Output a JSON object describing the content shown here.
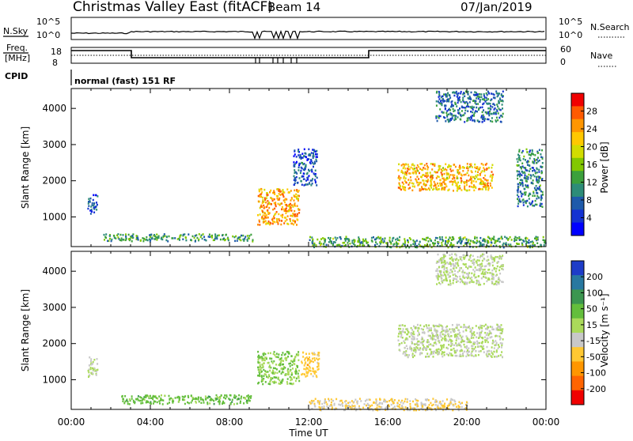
{
  "header": {
    "title": "Christmas Valley East (fitACF)",
    "beam": "Beam 14",
    "date": "07/Jan/2019"
  },
  "top_panels": {
    "nsky_label": "N.Sky",
    "nsearch_label": "N.Search",
    "noise_ticks_left": [
      "10^5",
      "10^0"
    ],
    "noise_ticks_right": [
      "10^5",
      "10^0"
    ],
    "freq_label_1": "Freq.",
    "freq_label_2": "[MHz]",
    "freq_ticks": [
      "18",
      "8"
    ],
    "nave_label": "Nave",
    "nave_ticks": [
      "60",
      "0"
    ],
    "cpid_label": "CPID",
    "cpid_text": "normal (fast) 151 RF"
  },
  "axes": {
    "ylabel": "Slant Range [km]",
    "yticks": [
      "4000",
      "3000",
      "2000",
      "1000"
    ],
    "xticks": [
      "00:00",
      "04:00",
      "08:00",
      "12:00",
      "16:00",
      "20:00",
      "00:00"
    ],
    "xlabel": "Time UT"
  },
  "power_bar": {
    "label": "Power [dB]",
    "ticks": [
      "28",
      "24",
      "20",
      "16",
      "12",
      "8",
      "4"
    ],
    "colors": [
      "#f00000",
      "#ff5a00",
      "#ff9600",
      "#ffc800",
      "#d2dc00",
      "#82c800",
      "#3ca03c",
      "#2d8c78",
      "#1e5aaa",
      "#1432d2",
      "#0000ff"
    ]
  },
  "velocity_bar": {
    "label": "Velocity [m s⁻¹]",
    "ticks": [
      "200",
      "100",
      "50",
      "15",
      "-15",
      "-50",
      "-100",
      "-200"
    ],
    "colors": [
      "#1e3cc8",
      "#2878a0",
      "#3c9650",
      "#64be3c",
      "#aada5a",
      "#c8c8c8",
      "#ffc832",
      "#ff9600",
      "#ff6400",
      "#f00000"
    ]
  },
  "chart_data": [
    {
      "type": "heatmap",
      "title": "Power",
      "xlabel": "Time UT",
      "ylabel": "Slant Range [km]",
      "xlim": [
        "00:00",
        "24:00"
      ],
      "ylim": [
        180,
        4550
      ],
      "colorbar_label": "Power [dB]",
      "colorbar_range": [
        0,
        30
      ],
      "regions": [
        {
          "t": [
            0.8,
            1.3
          ],
          "r": [
            1100,
            1650
          ],
          "power": 6
        },
        {
          "t": [
            1.6,
            9.2
          ],
          "r": [
            350,
            550
          ],
          "power": 11
        },
        {
          "t": [
            9.4,
            11.5
          ],
          "r": [
            800,
            1800
          ],
          "power": 22
        },
        {
          "t": [
            11.2,
            12.4
          ],
          "r": [
            1900,
            2900
          ],
          "power": 6
        },
        {
          "t": [
            12.0,
            24.0
          ],
          "r": [
            180,
            480
          ],
          "power": 12
        },
        {
          "t": [
            16.5,
            21.3
          ],
          "r": [
            1750,
            2500
          ],
          "power": 21
        },
        {
          "t": [
            18.4,
            21.8
          ],
          "r": [
            3650,
            4500
          ],
          "power": 8
        },
        {
          "t": [
            22.5,
            23.8
          ],
          "r": [
            1300,
            2900
          ],
          "power": 9
        }
      ]
    },
    {
      "type": "heatmap",
      "title": "Velocity",
      "xlabel": "Time UT",
      "ylabel": "Slant Range [km]",
      "xlim": [
        "00:00",
        "24:00"
      ],
      "ylim": [
        180,
        4550
      ],
      "colorbar_label": "Velocity [m s⁻¹]",
      "colorbar_range": [
        -200,
        200
      ],
      "regions": [
        {
          "t": [
            0.8,
            1.3
          ],
          "r": [
            1100,
            1650
          ],
          "velocity": 0
        },
        {
          "t": [
            2.5,
            9.2
          ],
          "r": [
            350,
            600
          ],
          "velocity": 60
        },
        {
          "t": [
            9.4,
            11.5
          ],
          "r": [
            900,
            1800
          ],
          "velocity": 40
        },
        {
          "t": [
            11.6,
            12.5
          ],
          "r": [
            1100,
            1800
          ],
          "velocity": -60
        },
        {
          "t": [
            12.0,
            20.0
          ],
          "r": [
            180,
            500
          ],
          "velocity": -40
        },
        {
          "t": [
            16.5,
            21.8
          ],
          "r": [
            1650,
            2550
          ],
          "velocity": 0
        },
        {
          "t": [
            18.4,
            21.8
          ],
          "r": [
            3650,
            4500
          ],
          "velocity": 0
        }
      ]
    }
  ]
}
